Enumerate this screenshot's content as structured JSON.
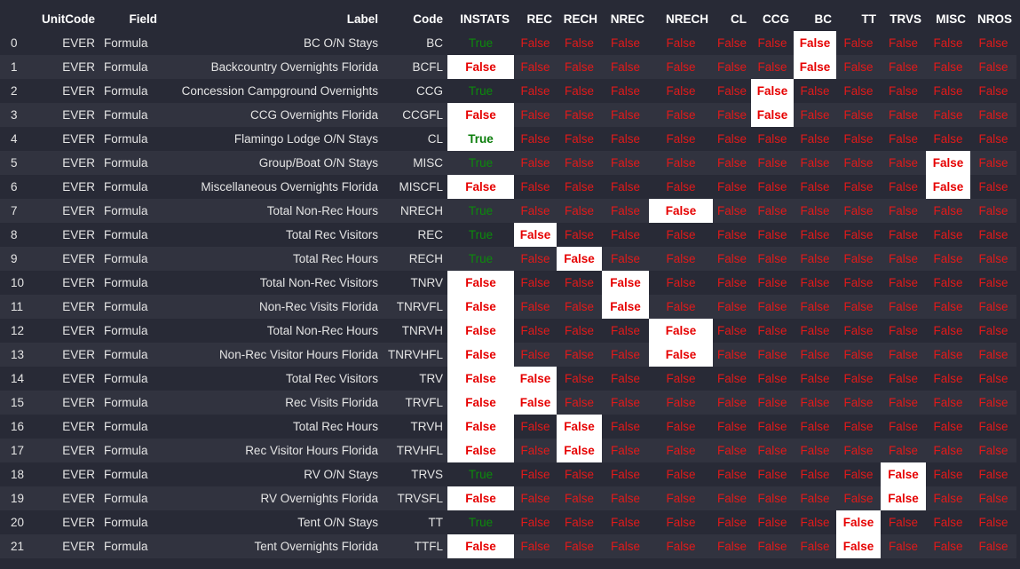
{
  "table": {
    "index_header": "",
    "columns": [
      "UnitCode",
      "Field",
      "Label",
      "Code",
      "INSTATS",
      "REC",
      "RECH",
      "NREC",
      "NRECH",
      "CL",
      "CCG",
      "BC",
      "TT",
      "TRVS",
      "MISC",
      "NROS"
    ],
    "bool_columns": [
      "INSTATS",
      "REC",
      "RECH",
      "NREC",
      "NRECH",
      "CL",
      "CCG",
      "BC",
      "TT",
      "TRVS",
      "MISC",
      "NROS"
    ],
    "rows": [
      {
        "index": "0",
        "UnitCode": "EVER",
        "Field": "Formula",
        "Label": "BC O/N Stays",
        "Code": "BC",
        "INSTATS": "True",
        "REC": "False",
        "RECH": "False",
        "NREC": "False",
        "NRECH": "False",
        "CL": "False",
        "CCG": "False",
        "BC": "False",
        "TT": "False",
        "TRVS": "False",
        "MISC": "False",
        "NROS": "False",
        "highlight": [
          "BC"
        ]
      },
      {
        "index": "1",
        "UnitCode": "EVER",
        "Field": "Formula",
        "Label": "Backcountry Overnights Florida",
        "Code": "BCFL",
        "INSTATS": "False",
        "REC": "False",
        "RECH": "False",
        "NREC": "False",
        "NRECH": "False",
        "CL": "False",
        "CCG": "False",
        "BC": "False",
        "TT": "False",
        "TRVS": "False",
        "MISC": "False",
        "NROS": "False",
        "highlight": [
          "INSTATS",
          "BC"
        ]
      },
      {
        "index": "2",
        "UnitCode": "EVER",
        "Field": "Formula",
        "Label": "Concession Campground Overnights",
        "Code": "CCG",
        "INSTATS": "True",
        "REC": "False",
        "RECH": "False",
        "NREC": "False",
        "NRECH": "False",
        "CL": "False",
        "CCG": "False",
        "BC": "False",
        "TT": "False",
        "TRVS": "False",
        "MISC": "False",
        "NROS": "False",
        "highlight": [
          "CCG"
        ]
      },
      {
        "index": "3",
        "UnitCode": "EVER",
        "Field": "Formula",
        "Label": "CCG Overnights Florida",
        "Code": "CCGFL",
        "INSTATS": "False",
        "REC": "False",
        "RECH": "False",
        "NREC": "False",
        "NRECH": "False",
        "CL": "False",
        "CCG": "False",
        "BC": "False",
        "TT": "False",
        "TRVS": "False",
        "MISC": "False",
        "NROS": "False",
        "highlight": [
          "INSTATS",
          "CCG"
        ]
      },
      {
        "index": "4",
        "UnitCode": "EVER",
        "Field": "Formula",
        "Label": "Flamingo Lodge O/N Stays",
        "Code": "CL",
        "INSTATS": "True",
        "REC": "False",
        "RECH": "False",
        "NREC": "False",
        "NRECH": "False",
        "CL": "False",
        "CCG": "False",
        "BC": "False",
        "TT": "False",
        "TRVS": "False",
        "MISC": "False",
        "NROS": "False",
        "highlight": [
          "INSTATS"
        ]
      },
      {
        "index": "5",
        "UnitCode": "EVER",
        "Field": "Formula",
        "Label": "Group/Boat O/N Stays",
        "Code": "MISC",
        "INSTATS": "True",
        "REC": "False",
        "RECH": "False",
        "NREC": "False",
        "NRECH": "False",
        "CL": "False",
        "CCG": "False",
        "BC": "False",
        "TT": "False",
        "TRVS": "False",
        "MISC": "False",
        "NROS": "False",
        "highlight": [
          "MISC"
        ]
      },
      {
        "index": "6",
        "UnitCode": "EVER",
        "Field": "Formula",
        "Label": "Miscellaneous Overnights Florida",
        "Code": "MISCFL",
        "INSTATS": "False",
        "REC": "False",
        "RECH": "False",
        "NREC": "False",
        "NRECH": "False",
        "CL": "False",
        "CCG": "False",
        "BC": "False",
        "TT": "False",
        "TRVS": "False",
        "MISC": "False",
        "NROS": "False",
        "highlight": [
          "INSTATS",
          "MISC"
        ]
      },
      {
        "index": "7",
        "UnitCode": "EVER",
        "Field": "Formula",
        "Label": "Total Non-Rec Hours",
        "Code": "NRECH",
        "INSTATS": "True",
        "REC": "False",
        "RECH": "False",
        "NREC": "False",
        "NRECH": "False",
        "CL": "False",
        "CCG": "False",
        "BC": "False",
        "TT": "False",
        "TRVS": "False",
        "MISC": "False",
        "NROS": "False",
        "highlight": [
          "NRECH"
        ]
      },
      {
        "index": "8",
        "UnitCode": "EVER",
        "Field": "Formula",
        "Label": "Total Rec Visitors",
        "Code": "REC",
        "INSTATS": "True",
        "REC": "False",
        "RECH": "False",
        "NREC": "False",
        "NRECH": "False",
        "CL": "False",
        "CCG": "False",
        "BC": "False",
        "TT": "False",
        "TRVS": "False",
        "MISC": "False",
        "NROS": "False",
        "highlight": [
          "REC"
        ]
      },
      {
        "index": "9",
        "UnitCode": "EVER",
        "Field": "Formula",
        "Label": "Total Rec Hours",
        "Code": "RECH",
        "INSTATS": "True",
        "REC": "False",
        "RECH": "False",
        "NREC": "False",
        "NRECH": "False",
        "CL": "False",
        "CCG": "False",
        "BC": "False",
        "TT": "False",
        "TRVS": "False",
        "MISC": "False",
        "NROS": "False",
        "highlight": [
          "RECH"
        ]
      },
      {
        "index": "10",
        "UnitCode": "EVER",
        "Field": "Formula",
        "Label": "Total Non-Rec Visitors",
        "Code": "TNRV",
        "INSTATS": "False",
        "REC": "False",
        "RECH": "False",
        "NREC": "False",
        "NRECH": "False",
        "CL": "False",
        "CCG": "False",
        "BC": "False",
        "TT": "False",
        "TRVS": "False",
        "MISC": "False",
        "NROS": "False",
        "highlight": [
          "INSTATS",
          "NREC"
        ]
      },
      {
        "index": "11",
        "UnitCode": "EVER",
        "Field": "Formula",
        "Label": "Non-Rec Visits Florida",
        "Code": "TNRVFL",
        "INSTATS": "False",
        "REC": "False",
        "RECH": "False",
        "NREC": "False",
        "NRECH": "False",
        "CL": "False",
        "CCG": "False",
        "BC": "False",
        "TT": "False",
        "TRVS": "False",
        "MISC": "False",
        "NROS": "False",
        "highlight": [
          "INSTATS",
          "NREC"
        ]
      },
      {
        "index": "12",
        "UnitCode": "EVER",
        "Field": "Formula",
        "Label": "Total Non-Rec Hours",
        "Code": "TNRVH",
        "INSTATS": "False",
        "REC": "False",
        "RECH": "False",
        "NREC": "False",
        "NRECH": "False",
        "CL": "False",
        "CCG": "False",
        "BC": "False",
        "TT": "False",
        "TRVS": "False",
        "MISC": "False",
        "NROS": "False",
        "highlight": [
          "INSTATS",
          "NRECH"
        ]
      },
      {
        "index": "13",
        "UnitCode": "EVER",
        "Field": "Formula",
        "Label": "Non-Rec Visitor Hours Florida",
        "Code": "TNRVHFL",
        "INSTATS": "False",
        "REC": "False",
        "RECH": "False",
        "NREC": "False",
        "NRECH": "False",
        "CL": "False",
        "CCG": "False",
        "BC": "False",
        "TT": "False",
        "TRVS": "False",
        "MISC": "False",
        "NROS": "False",
        "highlight": [
          "INSTATS",
          "NRECH"
        ]
      },
      {
        "index": "14",
        "UnitCode": "EVER",
        "Field": "Formula",
        "Label": "Total Rec Visitors",
        "Code": "TRV",
        "INSTATS": "False",
        "REC": "False",
        "RECH": "False",
        "NREC": "False",
        "NRECH": "False",
        "CL": "False",
        "CCG": "False",
        "BC": "False",
        "TT": "False",
        "TRVS": "False",
        "MISC": "False",
        "NROS": "False",
        "highlight": [
          "INSTATS",
          "REC"
        ]
      },
      {
        "index": "15",
        "UnitCode": "EVER",
        "Field": "Formula",
        "Label": "Rec Visits Florida",
        "Code": "TRVFL",
        "INSTATS": "False",
        "REC": "False",
        "RECH": "False",
        "NREC": "False",
        "NRECH": "False",
        "CL": "False",
        "CCG": "False",
        "BC": "False",
        "TT": "False",
        "TRVS": "False",
        "MISC": "False",
        "NROS": "False",
        "highlight": [
          "INSTATS",
          "REC"
        ]
      },
      {
        "index": "16",
        "UnitCode": "EVER",
        "Field": "Formula",
        "Label": "Total Rec Hours",
        "Code": "TRVH",
        "INSTATS": "False",
        "REC": "False",
        "RECH": "False",
        "NREC": "False",
        "NRECH": "False",
        "CL": "False",
        "CCG": "False",
        "BC": "False",
        "TT": "False",
        "TRVS": "False",
        "MISC": "False",
        "NROS": "False",
        "highlight": [
          "INSTATS",
          "RECH"
        ]
      },
      {
        "index": "17",
        "UnitCode": "EVER",
        "Field": "Formula",
        "Label": "Rec Visitor Hours Florida",
        "Code": "TRVHFL",
        "INSTATS": "False",
        "REC": "False",
        "RECH": "False",
        "NREC": "False",
        "NRECH": "False",
        "CL": "False",
        "CCG": "False",
        "BC": "False",
        "TT": "False",
        "TRVS": "False",
        "MISC": "False",
        "NROS": "False",
        "highlight": [
          "INSTATS",
          "RECH"
        ]
      },
      {
        "index": "18",
        "UnitCode": "EVER",
        "Field": "Formula",
        "Label": "RV O/N Stays",
        "Code": "TRVS",
        "INSTATS": "True",
        "REC": "False",
        "RECH": "False",
        "NREC": "False",
        "NRECH": "False",
        "CL": "False",
        "CCG": "False",
        "BC": "False",
        "TT": "False",
        "TRVS": "False",
        "MISC": "False",
        "NROS": "False",
        "highlight": [
          "TRVS"
        ]
      },
      {
        "index": "19",
        "UnitCode": "EVER",
        "Field": "Formula",
        "Label": "RV Overnights Florida",
        "Code": "TRVSFL",
        "INSTATS": "False",
        "REC": "False",
        "RECH": "False",
        "NREC": "False",
        "NRECH": "False",
        "CL": "False",
        "CCG": "False",
        "BC": "False",
        "TT": "False",
        "TRVS": "False",
        "MISC": "False",
        "NROS": "False",
        "highlight": [
          "INSTATS",
          "TRVS"
        ]
      },
      {
        "index": "20",
        "UnitCode": "EVER",
        "Field": "Formula",
        "Label": "Tent O/N Stays",
        "Code": "TT",
        "INSTATS": "True",
        "REC": "False",
        "RECH": "False",
        "NREC": "False",
        "NRECH": "False",
        "CL": "False",
        "CCG": "False",
        "BC": "False",
        "TT": "False",
        "TRVS": "False",
        "MISC": "False",
        "NROS": "False",
        "highlight": [
          "TT"
        ]
      },
      {
        "index": "21",
        "UnitCode": "EVER",
        "Field": "Formula",
        "Label": "Tent Overnights Florida",
        "Code": "TTFL",
        "INSTATS": "False",
        "REC": "False",
        "RECH": "False",
        "NREC": "False",
        "NRECH": "False",
        "CL": "False",
        "CCG": "False",
        "BC": "False",
        "TT": "False",
        "TRVS": "False",
        "MISC": "False",
        "NROS": "False",
        "highlight": [
          "INSTATS",
          "TT"
        ]
      }
    ]
  },
  "colors": {
    "background": "#282a36",
    "row_alt": "#31333f",
    "false_text": "#e11a1a",
    "true_text": "#0c8a0c",
    "highlight_bg": "#ffffff"
  }
}
